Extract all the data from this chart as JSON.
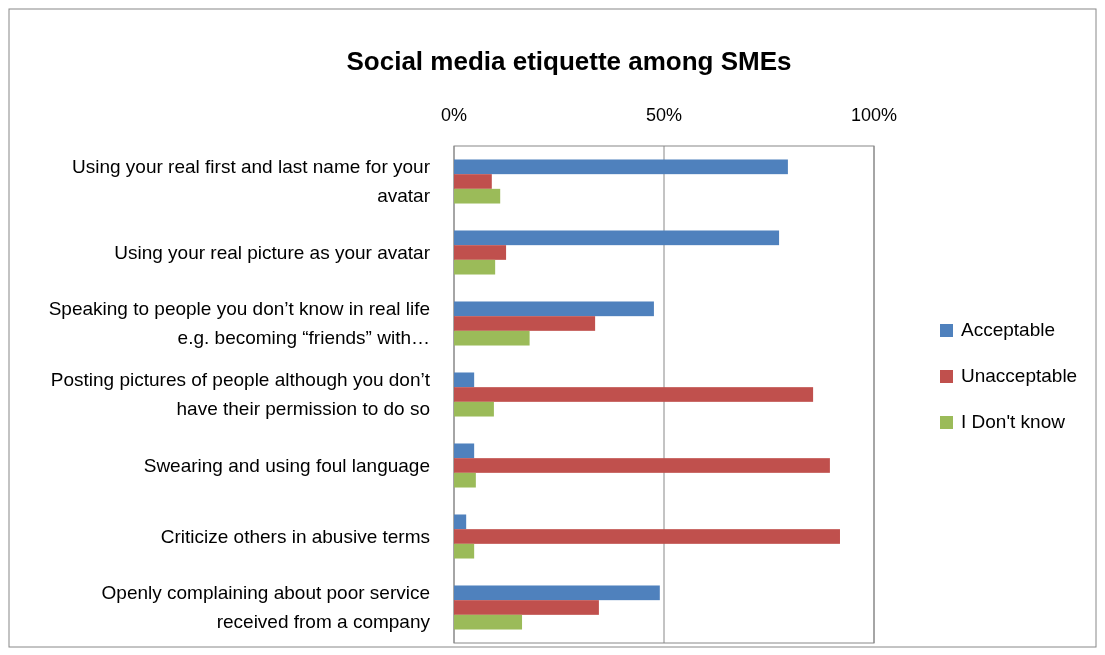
{
  "chart_data": {
    "type": "bar",
    "orientation": "horizontal",
    "title": "Social media etiquette among SMEs",
    "categories": [
      "Using your real first and last name for your avatar",
      "Using your real picture as your avatar",
      "Speaking to people you don’t know in real life e.g. becoming “friends” with…",
      "Posting pictures of people although you don’t have their permission to do so",
      "Swearing and using foul language",
      "Criticize others in abusive terms",
      "Openly complaining about poor service received from a company"
    ],
    "series": [
      {
        "name": "Acceptable",
        "color": "#4f81bd",
        "values": [
          79.5,
          77.4,
          47.6,
          4.8,
          4.8,
          2.9,
          49
        ]
      },
      {
        "name": "Unacceptable",
        "color": "#c0504d",
        "values": [
          9,
          12.4,
          33.6,
          85.5,
          89.5,
          91.9,
          34.5
        ]
      },
      {
        "name": "I Don't know",
        "color": "#9bbb59",
        "values": [
          11,
          9.8,
          18,
          9.5,
          5.2,
          4.8,
          16.2
        ]
      }
    ],
    "xlim": [
      0,
      100
    ],
    "xticks": [
      {
        "value": 0,
        "label": "0%"
      },
      {
        "value": 50,
        "label": "50%"
      },
      {
        "value": 100,
        "label": "100%"
      }
    ],
    "grid": "x",
    "legend": "right"
  }
}
